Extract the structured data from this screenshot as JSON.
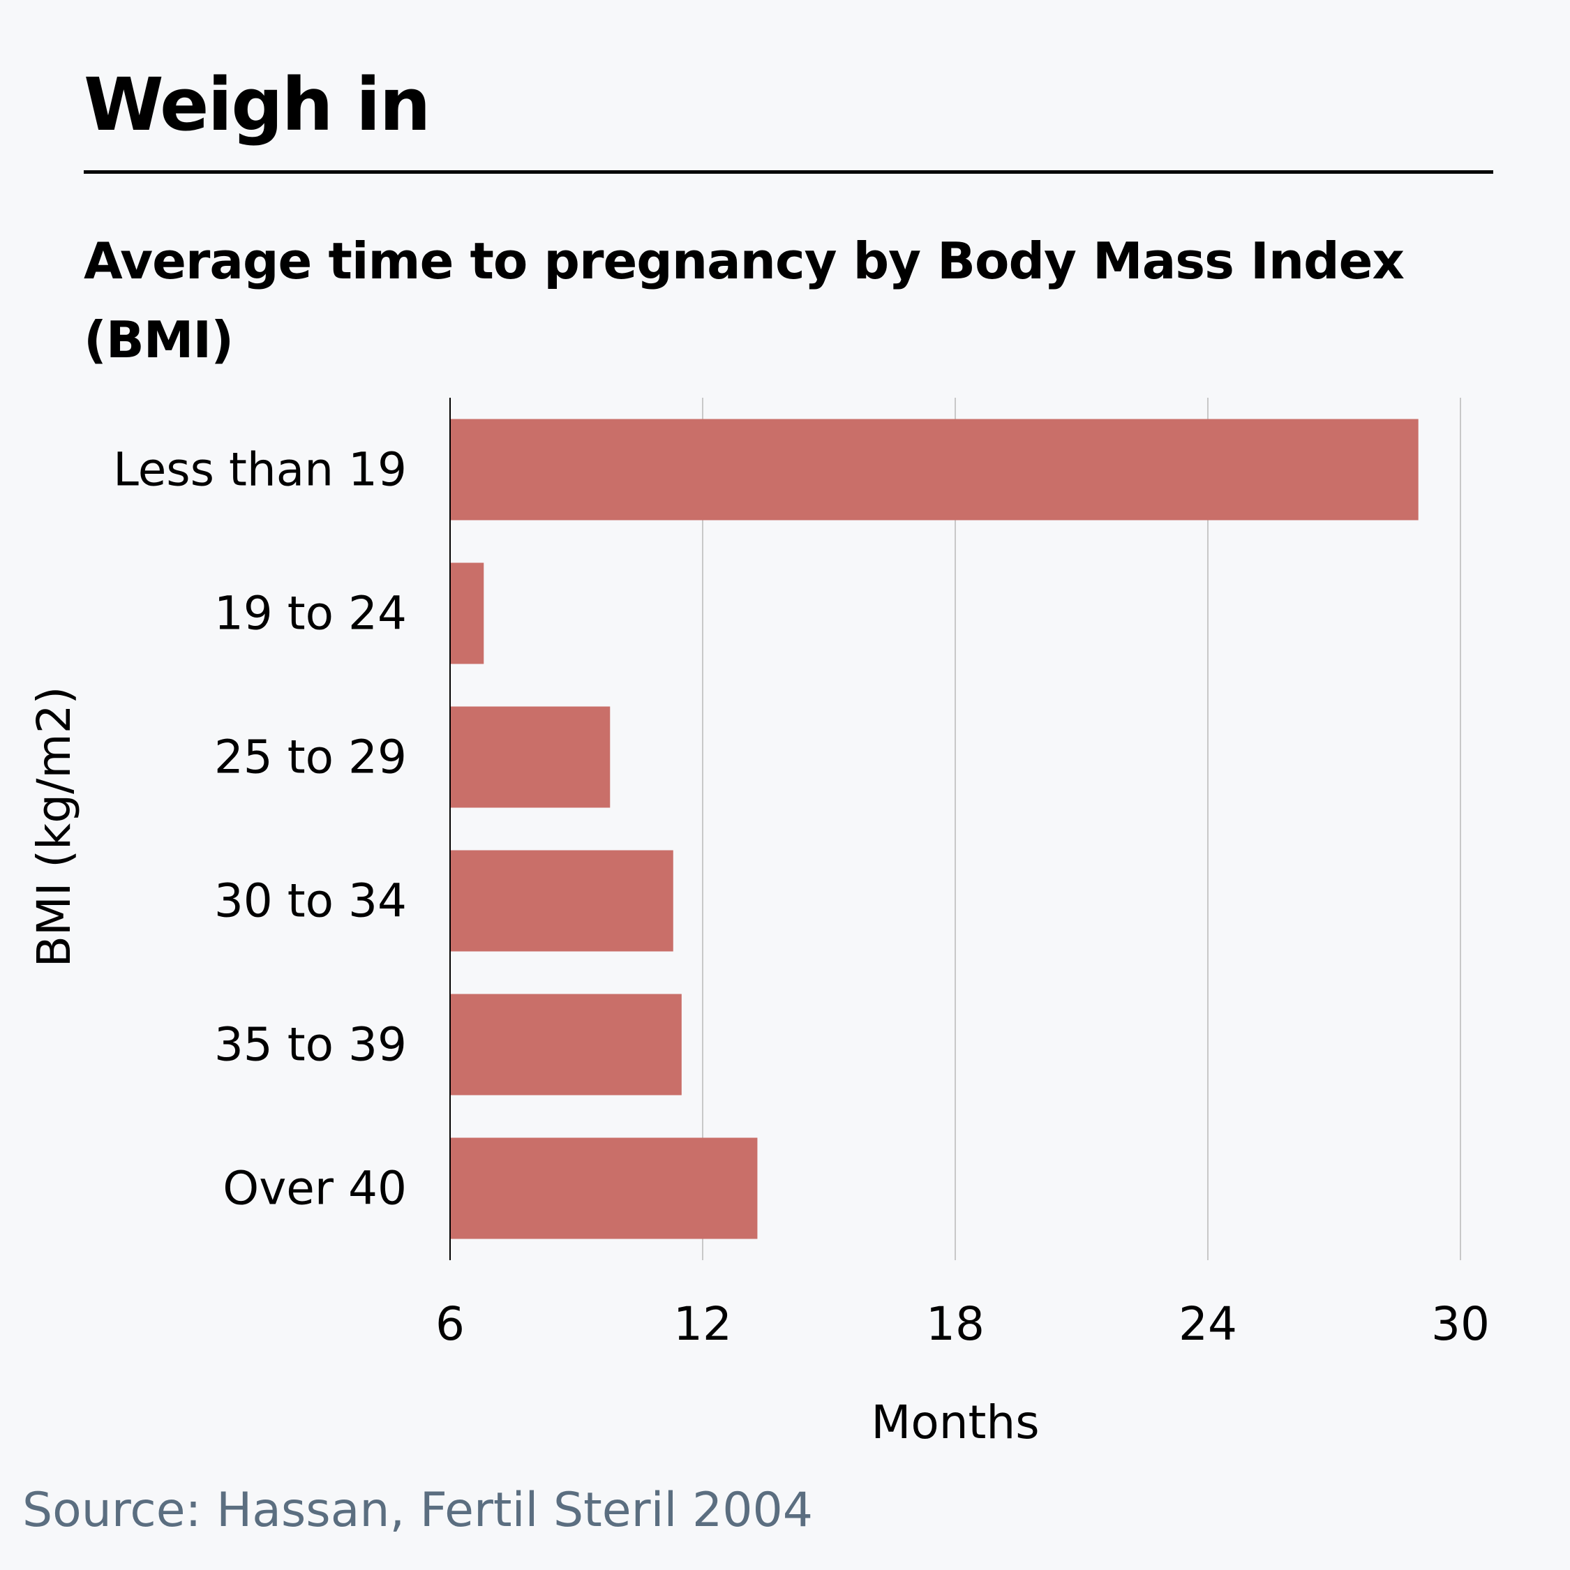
{
  "title": "Weigh in",
  "subtitle": "Average time to pregnancy by Body Mass Index (BMI)",
  "source": "Source: Hassan, Fertil Steril 2004",
  "colors": {
    "bar": "#c96f69",
    "grid": "#c8c8c8",
    "axis": "#000000",
    "background": "#f7f8fa",
    "source_text": "#5b6e80"
  },
  "chart_data": {
    "type": "bar",
    "orientation": "horizontal",
    "categories": [
      "Less than 19",
      "19 to 24",
      "25 to 29",
      "30 to 34",
      "35 to 39",
      "Over 40"
    ],
    "values": [
      29.0,
      6.8,
      9.8,
      11.3,
      11.5,
      13.3
    ],
    "xlabel": "Months",
    "ylabel": "BMI (kg/m2)",
    "xlim": [
      6,
      30
    ],
    "xticks": [
      6,
      12,
      18,
      24,
      30
    ],
    "grid": "vertical"
  }
}
